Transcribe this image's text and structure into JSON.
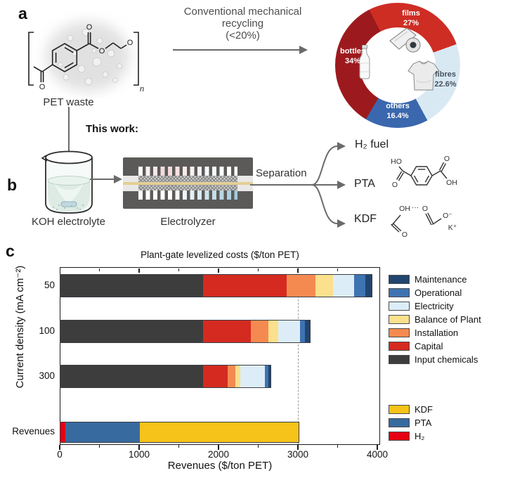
{
  "panels": {
    "a": "a",
    "b": "b",
    "c": "c"
  },
  "diagram": {
    "pet_label": "PET waste",
    "this_work": "This work:",
    "recycling_line1": "Conventional mechanical recycling",
    "recycling_line2": "(<20%)",
    "koh_label": "KOH electrolyte",
    "electrolyzer_label": "Electrolyzer",
    "separation_label": "Separation",
    "products": {
      "h2": "H₂ fuel",
      "pta": "PTA",
      "kdf": "KDF"
    },
    "molecules": {
      "pet": {
        "o1": "O",
        "o2": "O",
        "o3": "O",
        "o4": "O",
        "n": "n"
      },
      "pta": {
        "ho": "HO",
        "o_top": "O",
        "o_bottom": "O",
        "oh": "OH"
      },
      "kdf": {
        "oh": "OH",
        "dots": "···",
        "o": "O",
        "o_minus": "O⁻",
        "k_plus": "K⁺"
      }
    }
  },
  "chart_data": [
    {
      "type": "pie",
      "subtype": "donut",
      "title": "Conventional mechanical recycling (<20%)",
      "start_angle_deg": 333,
      "slices": [
        {
          "label": "films",
          "value": 27,
          "value_label": "27%",
          "color": "#ce2d24",
          "label_color": "#ffffff"
        },
        {
          "label": "fibres",
          "value": 22.6,
          "value_label": "22.6%",
          "color": "#d9e9f4",
          "label_color": "#45525d"
        },
        {
          "label": "others",
          "value": 16.4,
          "value_label": "16.4%",
          "color": "#3a67ad",
          "label_color": "#ffffff"
        },
        {
          "label": "bottles",
          "value": 34,
          "value_label": "34%",
          "color": "#9c1a1d",
          "label_color": "#ffffff"
        }
      ]
    },
    {
      "type": "bar",
      "orientation": "horizontal",
      "stacked": true,
      "title": "Plant-gate levelized costs ($/ton PET)",
      "xlabel": "Revenues ($/ton PET)",
      "ylabel": "Current density (mA cm⁻²)",
      "xlim": [
        0,
        4000
      ],
      "xticks": [
        0,
        1000,
        2000,
        3000,
        4000
      ],
      "minor_xticks": [
        500,
        1500,
        2500,
        3500
      ],
      "dashed_guide_x": 3000,
      "grid": false,
      "cost_bars": {
        "categories": [
          "50",
          "100",
          "300"
        ],
        "series": [
          {
            "name": "Input chemicals",
            "color": "#3d3d3d",
            "values": [
              1800,
              1800,
              1800
            ]
          },
          {
            "name": "Capital",
            "color": "#d42a20",
            "values": [
              1050,
              600,
              310
            ]
          },
          {
            "name": "Installation",
            "color": "#f58a51",
            "values": [
              360,
              220,
              90
            ]
          },
          {
            "name": "Balance of Plant",
            "color": "#fbe08d",
            "values": [
              220,
              120,
              70
            ]
          },
          {
            "name": "Electricity",
            "color": "#ddedf7",
            "values": [
              270,
              280,
              310
            ]
          },
          {
            "name": "Operational",
            "color": "#3e73b2",
            "values": [
              140,
              60,
              40
            ]
          },
          {
            "name": "Maintenance",
            "color": "#21456f",
            "values": [
              80,
              60,
              30
            ]
          }
        ]
      },
      "revenue_bar": {
        "category": "Revenues",
        "series": [
          {
            "name": "H₂",
            "color": "#e60012",
            "value": 60
          },
          {
            "name": "PTA",
            "color": "#376a9f",
            "value": 940
          },
          {
            "name": "KDF",
            "color": "#f5c31a",
            "value": 2000
          }
        ]
      },
      "legend_costs": [
        "Maintenance",
        "Operational",
        "Electricity",
        "Balance of Plant",
        "Installation",
        "Capital",
        "Input chemicals"
      ],
      "legend_revenue": [
        "KDF",
        "PTA",
        "H₂"
      ]
    }
  ]
}
